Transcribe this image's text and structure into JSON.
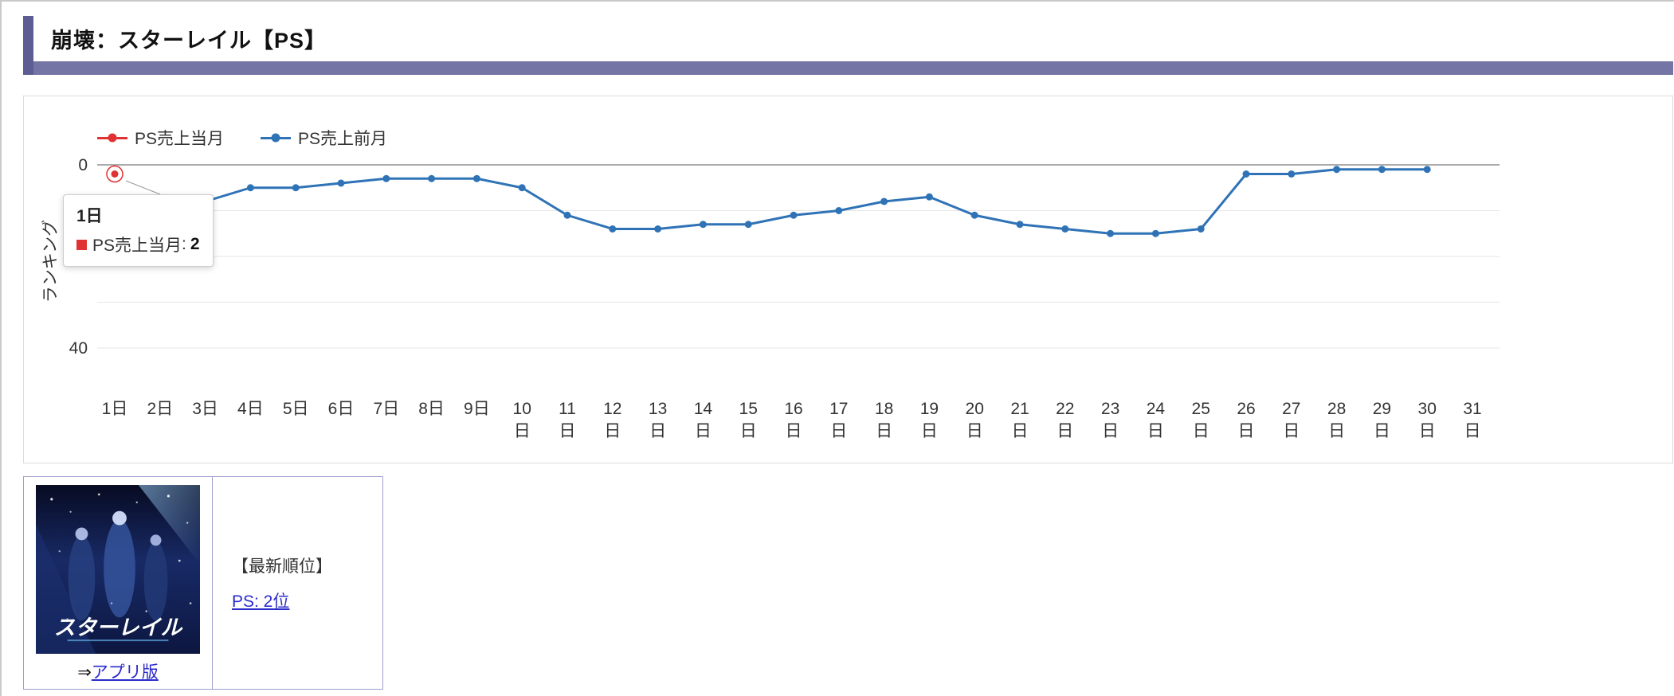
{
  "header": {
    "title": "崩壊：スターレイル【PS】"
  },
  "chart_data": {
    "type": "line",
    "title": "",
    "xlabel": "",
    "ylabel": "ランキング",
    "y_axis_inverted": true,
    "ylim": [
      0,
      45
    ],
    "yticks_labeled": [
      0,
      20,
      40
    ],
    "grid_step": 10,
    "grid": true,
    "legend_position": "top-left",
    "categories": [
      "1日",
      "2日",
      "3日",
      "4日",
      "5日",
      "6日",
      "7日",
      "8日",
      "9日",
      "10日",
      "11日",
      "12日",
      "13日",
      "14日",
      "15日",
      "16日",
      "17日",
      "18日",
      "19日",
      "20日",
      "21日",
      "22日",
      "23日",
      "24日",
      "25日",
      "26日",
      "27日",
      "28日",
      "29日",
      "30日",
      "31日"
    ],
    "series": [
      {
        "name": "PS売上当月",
        "color": "#e03232",
        "values": [
          2,
          null,
          null,
          null,
          null,
          null,
          null,
          null,
          null,
          null,
          null,
          null,
          null,
          null,
          null,
          null,
          null,
          null,
          null,
          null,
          null,
          null,
          null,
          null,
          null,
          null,
          null,
          null,
          null,
          null,
          null
        ]
      },
      {
        "name": "PS売上前月",
        "color": "#2f73b6",
        "values": [
          13,
          10,
          8,
          5,
          5,
          4,
          3,
          3,
          3,
          5,
          11,
          14,
          14,
          13,
          13,
          11,
          10,
          8,
          7,
          11,
          13,
          14,
          15,
          15,
          14,
          2,
          2,
          1,
          1,
          1,
          null
        ]
      }
    ]
  },
  "tooltip": {
    "title": "1日",
    "series": "PS売上当月",
    "separator": ": ",
    "value": "2",
    "marker_color": "#e03232"
  },
  "info": {
    "rank_header": "【最新順位】",
    "rank_link": "PS: 2位",
    "app_prefix": "⇒",
    "app_link": "アプリ版",
    "cover_title": "スターレイル"
  },
  "colors": {
    "accent_strip": "#7474a5",
    "accent_left": "#5d5d93",
    "link": "#2b2bcc",
    "axis_line": "#555555",
    "grid_line": "#e6e6e6",
    "table_border": "#9f9fce"
  }
}
